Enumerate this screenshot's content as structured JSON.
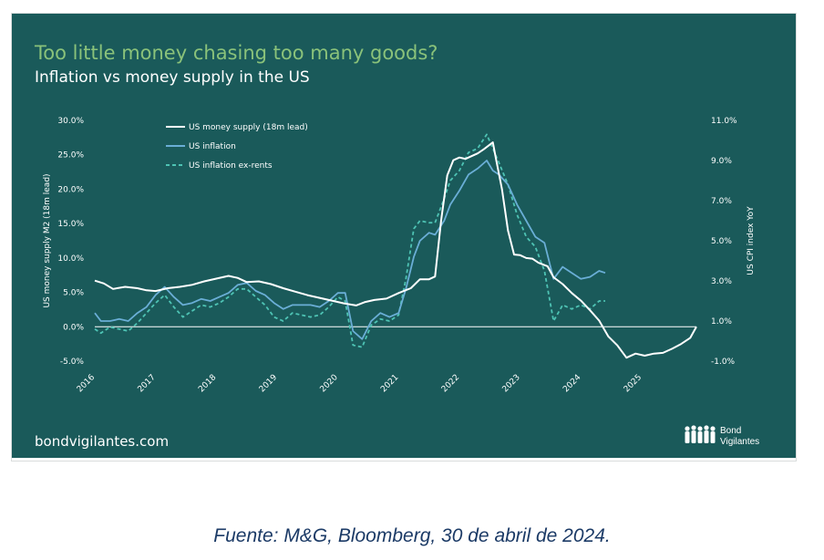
{
  "header": {
    "title": "Too little money chasing too many goods?",
    "subtitle": "Inflation vs money supply in the US"
  },
  "footer": {
    "website": "bondvigilantes.com",
    "logo_line1": "Bond",
    "logo_line2": "Vigilantes"
  },
  "caption": "Fuente: M&G, Bloomberg, 30 de abril de 2024.",
  "colors": {
    "background": "#1a5a5a",
    "money_supply": "#ffffff",
    "inflation": "#6aaed6",
    "inflation_ex_rents": "#4ec3b4",
    "title": "#8ac27a"
  },
  "chart_data": {
    "type": "line",
    "title": "Inflation vs money supply in the US",
    "ylabel_left": "US money supply M2 (18m lead)",
    "ylabel_right": "US CPI index YoY",
    "left_axis": {
      "min": -5,
      "max": 30,
      "ticks": [
        "30.0%",
        "25.0%",
        "20.0%",
        "15.0%",
        "10.0%",
        "5.0%",
        "0.0%",
        "-5.0%"
      ]
    },
    "right_axis": {
      "min": -1,
      "max": 11,
      "ticks": [
        "11.0%",
        "9.0%",
        "7.0%",
        "5.0%",
        "3.0%",
        "1.0%",
        "-1.0%"
      ]
    },
    "x_axis": {
      "min": 2016.0,
      "max": 2025.9,
      "ticks": [
        "2016",
        "2017",
        "2018",
        "2019",
        "2020",
        "2021",
        "2022",
        "2023",
        "2024",
        "2025"
      ]
    },
    "series": [
      {
        "name": "US money supply (18m lead)",
        "axis": "left",
        "style": "solid",
        "points": [
          [
            2016.0,
            6.7
          ],
          [
            2016.15,
            6.3
          ],
          [
            2016.3,
            5.5
          ],
          [
            2016.5,
            5.8
          ],
          [
            2016.7,
            5.6
          ],
          [
            2016.85,
            5.3
          ],
          [
            2017.0,
            5.2
          ],
          [
            2017.2,
            5.6
          ],
          [
            2017.4,
            5.8
          ],
          [
            2017.6,
            6.1
          ],
          [
            2017.8,
            6.6
          ],
          [
            2018.0,
            7.0
          ],
          [
            2018.2,
            7.4
          ],
          [
            2018.35,
            7.1
          ],
          [
            2018.5,
            6.5
          ],
          [
            2018.7,
            6.6
          ],
          [
            2018.9,
            6.2
          ],
          [
            2019.1,
            5.6
          ],
          [
            2019.3,
            5.1
          ],
          [
            2019.5,
            4.6
          ],
          [
            2019.7,
            4.2
          ],
          [
            2019.9,
            3.8
          ],
          [
            2020.1,
            3.4
          ],
          [
            2020.3,
            3.1
          ],
          [
            2020.45,
            3.6
          ],
          [
            2020.6,
            3.9
          ],
          [
            2020.8,
            4.1
          ],
          [
            2021.0,
            4.9
          ],
          [
            2021.2,
            5.6
          ],
          [
            2021.35,
            6.9
          ],
          [
            2021.5,
            6.9
          ],
          [
            2021.6,
            7.3
          ],
          [
            2021.7,
            15.5
          ],
          [
            2021.8,
            22.0
          ],
          [
            2021.9,
            24.2
          ],
          [
            2022.0,
            24.6
          ],
          [
            2022.1,
            24.4
          ],
          [
            2022.2,
            24.8
          ],
          [
            2022.3,
            25.2
          ],
          [
            2022.4,
            25.8
          ],
          [
            2022.55,
            26.8
          ],
          [
            2022.6,
            24.5
          ],
          [
            2022.7,
            20.0
          ],
          [
            2022.8,
            14.0
          ],
          [
            2022.9,
            10.5
          ],
          [
            2023.0,
            10.4
          ],
          [
            2023.1,
            10.0
          ],
          [
            2023.2,
            9.9
          ],
          [
            2023.3,
            9.3
          ],
          [
            2023.45,
            8.8
          ],
          [
            2023.55,
            7.2
          ],
          [
            2023.7,
            6.2
          ],
          [
            2023.85,
            4.9
          ],
          [
            2024.0,
            3.8
          ],
          [
            2024.15,
            2.4
          ],
          [
            2024.3,
            0.9
          ],
          [
            2024.45,
            -1.4
          ],
          [
            2024.6,
            -2.7
          ],
          [
            2024.75,
            -4.5
          ],
          [
            2024.9,
            -3.9
          ],
          [
            2025.05,
            -4.2
          ],
          [
            2025.2,
            -3.9
          ],
          [
            2025.35,
            -3.8
          ],
          [
            2025.5,
            -3.2
          ],
          [
            2025.65,
            -2.5
          ],
          [
            2025.8,
            -1.6
          ],
          [
            2025.9,
            0.0
          ]
        ]
      },
      {
        "name": "US inflation",
        "axis": "right",
        "style": "solid",
        "points": [
          [
            2016.0,
            1.4
          ],
          [
            2016.1,
            1.0
          ],
          [
            2016.25,
            1.0
          ],
          [
            2016.4,
            1.1
          ],
          [
            2016.55,
            1.0
          ],
          [
            2016.7,
            1.4
          ],
          [
            2016.85,
            1.7
          ],
          [
            2017.0,
            2.3
          ],
          [
            2017.15,
            2.7
          ],
          [
            2017.3,
            2.2
          ],
          [
            2017.45,
            1.8
          ],
          [
            2017.6,
            1.9
          ],
          [
            2017.75,
            2.1
          ],
          [
            2017.9,
            2.0
          ],
          [
            2018.05,
            2.2
          ],
          [
            2018.2,
            2.4
          ],
          [
            2018.35,
            2.8
          ],
          [
            2018.5,
            2.9
          ],
          [
            2018.65,
            2.5
          ],
          [
            2018.8,
            2.3
          ],
          [
            2018.95,
            1.9
          ],
          [
            2019.1,
            1.6
          ],
          [
            2019.25,
            1.8
          ],
          [
            2019.4,
            1.8
          ],
          [
            2019.55,
            1.8
          ],
          [
            2019.7,
            1.7
          ],
          [
            2019.85,
            2.0
          ],
          [
            2020.0,
            2.4
          ],
          [
            2020.12,
            2.4
          ],
          [
            2020.25,
            0.5
          ],
          [
            2020.4,
            0.1
          ],
          [
            2020.55,
            1.0
          ],
          [
            2020.7,
            1.4
          ],
          [
            2020.85,
            1.2
          ],
          [
            2021.0,
            1.4
          ],
          [
            2021.12,
            2.6
          ],
          [
            2021.25,
            4.2
          ],
          [
            2021.35,
            5.0
          ],
          [
            2021.5,
            5.4
          ],
          [
            2021.6,
            5.3
          ],
          [
            2021.75,
            6.0
          ],
          [
            2021.85,
            6.8
          ],
          [
            2022.0,
            7.5
          ],
          [
            2022.15,
            8.3
          ],
          [
            2022.3,
            8.6
          ],
          [
            2022.45,
            9.0
          ],
          [
            2022.55,
            8.5
          ],
          [
            2022.65,
            8.3
          ],
          [
            2022.8,
            7.8
          ],
          [
            2022.95,
            6.8
          ],
          [
            2023.1,
            6.0
          ],
          [
            2023.25,
            5.2
          ],
          [
            2023.4,
            4.9
          ],
          [
            2023.55,
            3.1
          ],
          [
            2023.7,
            3.7
          ],
          [
            2023.85,
            3.4
          ],
          [
            2024.0,
            3.1
          ],
          [
            2024.15,
            3.2
          ],
          [
            2024.3,
            3.5
          ],
          [
            2024.4,
            3.4
          ]
        ]
      },
      {
        "name": "US inflation ex-rents",
        "axis": "right",
        "style": "dashed",
        "points": [
          [
            2016.0,
            0.6
          ],
          [
            2016.1,
            0.4
          ],
          [
            2016.25,
            0.7
          ],
          [
            2016.4,
            0.6
          ],
          [
            2016.55,
            0.5
          ],
          [
            2016.7,
            0.9
          ],
          [
            2016.85,
            1.4
          ],
          [
            2017.0,
            1.9
          ],
          [
            2017.15,
            2.3
          ],
          [
            2017.3,
            1.7
          ],
          [
            2017.45,
            1.2
          ],
          [
            2017.6,
            1.5
          ],
          [
            2017.75,
            1.8
          ],
          [
            2017.9,
            1.7
          ],
          [
            2018.05,
            1.9
          ],
          [
            2018.2,
            2.2
          ],
          [
            2018.35,
            2.6
          ],
          [
            2018.5,
            2.6
          ],
          [
            2018.65,
            2.2
          ],
          [
            2018.8,
            1.8
          ],
          [
            2018.95,
            1.2
          ],
          [
            2019.1,
            1.0
          ],
          [
            2019.25,
            1.4
          ],
          [
            2019.4,
            1.3
          ],
          [
            2019.55,
            1.2
          ],
          [
            2019.7,
            1.3
          ],
          [
            2019.85,
            1.7
          ],
          [
            2020.0,
            2.2
          ],
          [
            2020.12,
            2.0
          ],
          [
            2020.25,
            -0.2
          ],
          [
            2020.4,
            -0.3
          ],
          [
            2020.55,
            0.8
          ],
          [
            2020.7,
            1.1
          ],
          [
            2020.85,
            1.0
          ],
          [
            2021.0,
            1.3
          ],
          [
            2021.12,
            3.1
          ],
          [
            2021.25,
            5.6
          ],
          [
            2021.35,
            6.0
          ],
          [
            2021.5,
            5.9
          ],
          [
            2021.6,
            5.9
          ],
          [
            2021.75,
            7.1
          ],
          [
            2021.85,
            8.0
          ],
          [
            2022.0,
            8.5
          ],
          [
            2022.15,
            9.4
          ],
          [
            2022.3,
            9.6
          ],
          [
            2022.45,
            10.3
          ],
          [
            2022.55,
            9.6
          ],
          [
            2022.65,
            8.9
          ],
          [
            2022.8,
            7.8
          ],
          [
            2022.95,
            6.3
          ],
          [
            2023.1,
            5.2
          ],
          [
            2023.25,
            4.7
          ],
          [
            2023.4,
            3.5
          ],
          [
            2023.55,
            1.0
          ],
          [
            2023.7,
            1.8
          ],
          [
            2023.85,
            1.6
          ],
          [
            2024.0,
            1.8
          ],
          [
            2024.15,
            1.6
          ],
          [
            2024.3,
            2.0
          ],
          [
            2024.4,
            2.0
          ]
        ]
      }
    ]
  }
}
